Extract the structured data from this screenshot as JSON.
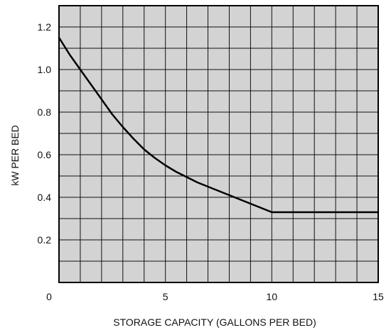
{
  "chart_data": {
    "type": "line",
    "title": "",
    "xlabel": "STORAGE CAPACITY (GALLONS PER BED)",
    "ylabel": "kW PER BED",
    "xlim": [
      0,
      15
    ],
    "ylim": [
      0,
      1.3
    ],
    "x_ticks": [
      0,
      5,
      10,
      15
    ],
    "y_ticks": [
      0.2,
      0.4,
      0.6,
      0.8,
      1.0,
      1.2
    ],
    "x_tick_labels": [
      "0",
      "5",
      "10",
      "15"
    ],
    "y_tick_labels": [
      "0.2",
      "0.4",
      "0.6",
      "0.8",
      "1.0",
      "1.2"
    ],
    "grid": true,
    "x_grid_step": 1,
    "y_grid_step": 0.1,
    "plot_background": "#d3d3d3",
    "grid_color": "#111111",
    "line_color": "#000000",
    "series": [
      {
        "x": [
          0,
          0.5,
          1,
          1.5,
          2,
          2.5,
          3,
          3.5,
          4,
          4.5,
          5,
          5.5,
          6,
          6.5,
          7,
          7.5,
          8,
          8.5,
          9,
          9.5,
          10,
          11,
          12,
          13,
          14,
          15
        ],
        "y": [
          1.15,
          1.07,
          1.0,
          0.93,
          0.86,
          0.79,
          0.73,
          0.675,
          0.625,
          0.585,
          0.55,
          0.52,
          0.495,
          0.47,
          0.45,
          0.43,
          0.41,
          0.39,
          0.37,
          0.35,
          0.33,
          0.33,
          0.33,
          0.33,
          0.33,
          0.33
        ]
      }
    ]
  }
}
